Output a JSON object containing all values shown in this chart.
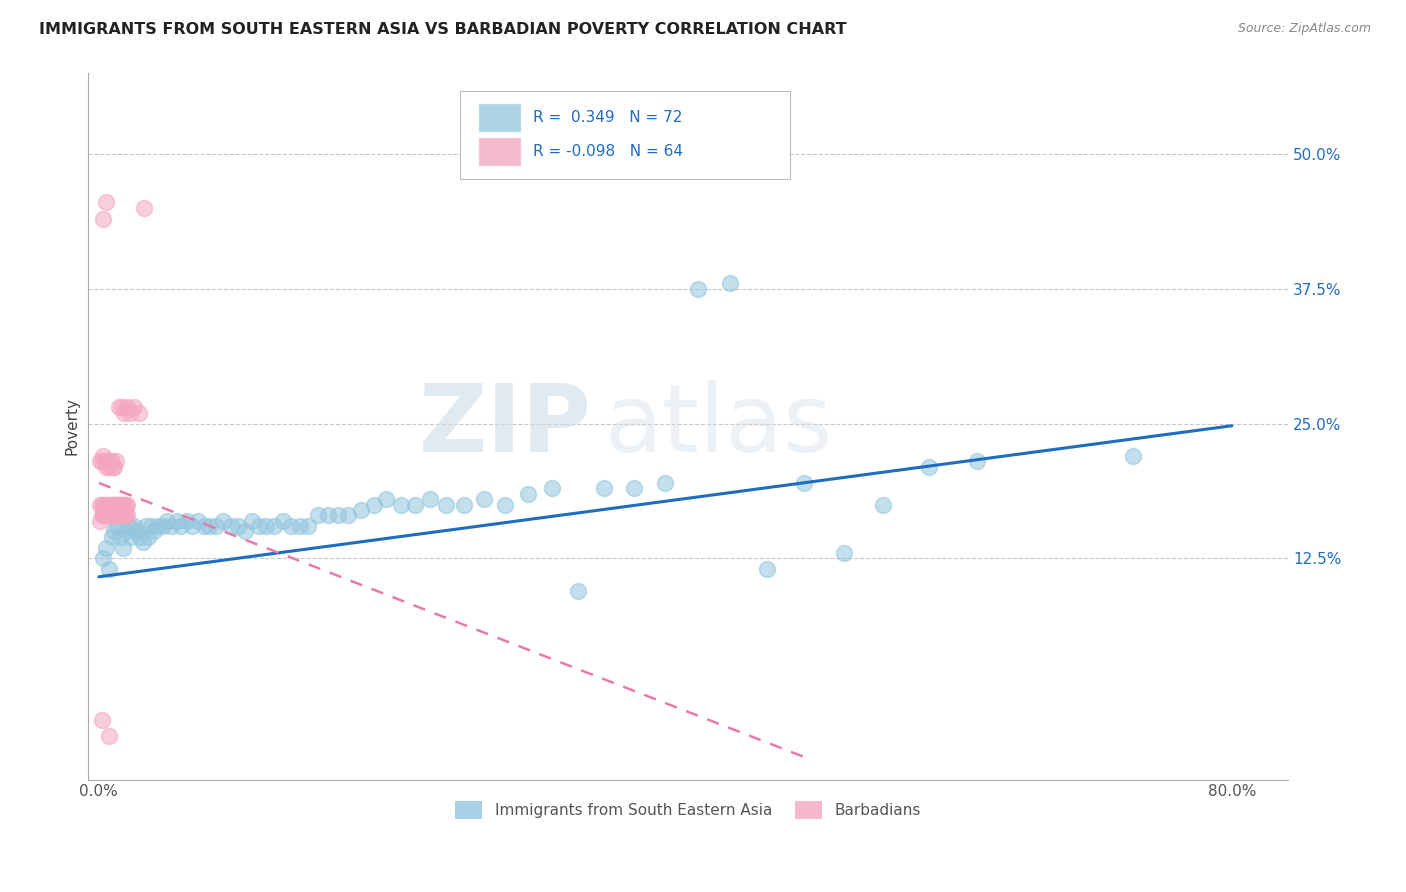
{
  "title": "IMMIGRANTS FROM SOUTH EASTERN ASIA VS BARBADIAN POVERTY CORRELATION CHART",
  "source": "Source: ZipAtlas.com",
  "ylabel": "Poverty",
  "y_tick_labels_right": [
    "50.0%",
    "37.5%",
    "25.0%",
    "12.5%"
  ],
  "y_tick_vals_right": [
    0.5,
    0.375,
    0.25,
    0.125
  ],
  "xlim": [
    -0.008,
    0.84
  ],
  "ylim": [
    -0.08,
    0.575
  ],
  "blue_r": "0.349",
  "blue_n": "72",
  "pink_r": "-0.098",
  "pink_n": "64",
  "legend_label_blue": "Immigrants from South Eastern Asia",
  "legend_label_pink": "Barbadians",
  "blue_color": "#92c5de",
  "pink_color": "#f4a6be",
  "blue_line_color": "#1f6dbf",
  "pink_line_color": "#e87aab",
  "watermark_zip": "ZIP",
  "watermark_atlas": "atlas",
  "blue_scatter_x": [
    0.003,
    0.005,
    0.007,
    0.009,
    0.011,
    0.013,
    0.015,
    0.017,
    0.019,
    0.021,
    0.023,
    0.025,
    0.027,
    0.029,
    0.031,
    0.033,
    0.035,
    0.037,
    0.039,
    0.042,
    0.045,
    0.048,
    0.051,
    0.055,
    0.058,
    0.062,
    0.066,
    0.07,
    0.074,
    0.078,
    0.083,
    0.088,
    0.093,
    0.098,
    0.103,
    0.108,
    0.113,
    0.118,
    0.124,
    0.13,
    0.136,
    0.142,
    0.148,
    0.155,
    0.162,
    0.169,
    0.176,
    0.185,
    0.194,
    0.203,
    0.213,
    0.223,
    0.234,
    0.245,
    0.258,
    0.272,
    0.287,
    0.303,
    0.32,
    0.338,
    0.357,
    0.378,
    0.4,
    0.423,
    0.446,
    0.472,
    0.498,
    0.526,
    0.554,
    0.586,
    0.62,
    0.73
  ],
  "blue_scatter_y": [
    0.125,
    0.135,
    0.115,
    0.145,
    0.15,
    0.155,
    0.145,
    0.135,
    0.15,
    0.155,
    0.145,
    0.155,
    0.15,
    0.145,
    0.14,
    0.155,
    0.145,
    0.155,
    0.15,
    0.155,
    0.155,
    0.16,
    0.155,
    0.16,
    0.155,
    0.16,
    0.155,
    0.16,
    0.155,
    0.155,
    0.155,
    0.16,
    0.155,
    0.155,
    0.15,
    0.16,
    0.155,
    0.155,
    0.155,
    0.16,
    0.155,
    0.155,
    0.155,
    0.165,
    0.165,
    0.165,
    0.165,
    0.17,
    0.175,
    0.18,
    0.175,
    0.175,
    0.18,
    0.175,
    0.175,
    0.18,
    0.175,
    0.185,
    0.19,
    0.095,
    0.19,
    0.19,
    0.195,
    0.375,
    0.38,
    0.115,
    0.195,
    0.13,
    0.175,
    0.21,
    0.215,
    0.22
  ],
  "pink_scatter_x": [
    0.001,
    0.001,
    0.002,
    0.002,
    0.003,
    0.003,
    0.004,
    0.004,
    0.005,
    0.005,
    0.006,
    0.006,
    0.007,
    0.007,
    0.008,
    0.008,
    0.009,
    0.009,
    0.01,
    0.01,
    0.011,
    0.011,
    0.012,
    0.012,
    0.013,
    0.013,
    0.014,
    0.014,
    0.015,
    0.015,
    0.016,
    0.016,
    0.017,
    0.017,
    0.018,
    0.018,
    0.019,
    0.019,
    0.02,
    0.02,
    0.001,
    0.002,
    0.003,
    0.004,
    0.005,
    0.006,
    0.007,
    0.008,
    0.009,
    0.01,
    0.011,
    0.012,
    0.014,
    0.016,
    0.018,
    0.02,
    0.022,
    0.025,
    0.028,
    0.032,
    0.003,
    0.005,
    0.002,
    0.007
  ],
  "pink_scatter_y": [
    0.16,
    0.175,
    0.165,
    0.175,
    0.165,
    0.175,
    0.165,
    0.175,
    0.165,
    0.17,
    0.165,
    0.175,
    0.165,
    0.175,
    0.165,
    0.175,
    0.165,
    0.175,
    0.165,
    0.175,
    0.165,
    0.175,
    0.165,
    0.175,
    0.165,
    0.175,
    0.165,
    0.175,
    0.165,
    0.175,
    0.165,
    0.175,
    0.165,
    0.175,
    0.165,
    0.175,
    0.165,
    0.175,
    0.165,
    0.175,
    0.215,
    0.215,
    0.22,
    0.215,
    0.21,
    0.215,
    0.21,
    0.215,
    0.215,
    0.21,
    0.21,
    0.215,
    0.265,
    0.265,
    0.26,
    0.265,
    0.26,
    0.265,
    0.26,
    0.45,
    0.44,
    0.455,
    -0.025,
    -0.04
  ],
  "blue_trend_x": [
    0.0,
    0.8
  ],
  "blue_trend_y": [
    0.108,
    0.248
  ],
  "pink_trend_x": [
    0.0,
    0.5
  ],
  "pink_trend_y": [
    0.195,
    -0.06
  ]
}
